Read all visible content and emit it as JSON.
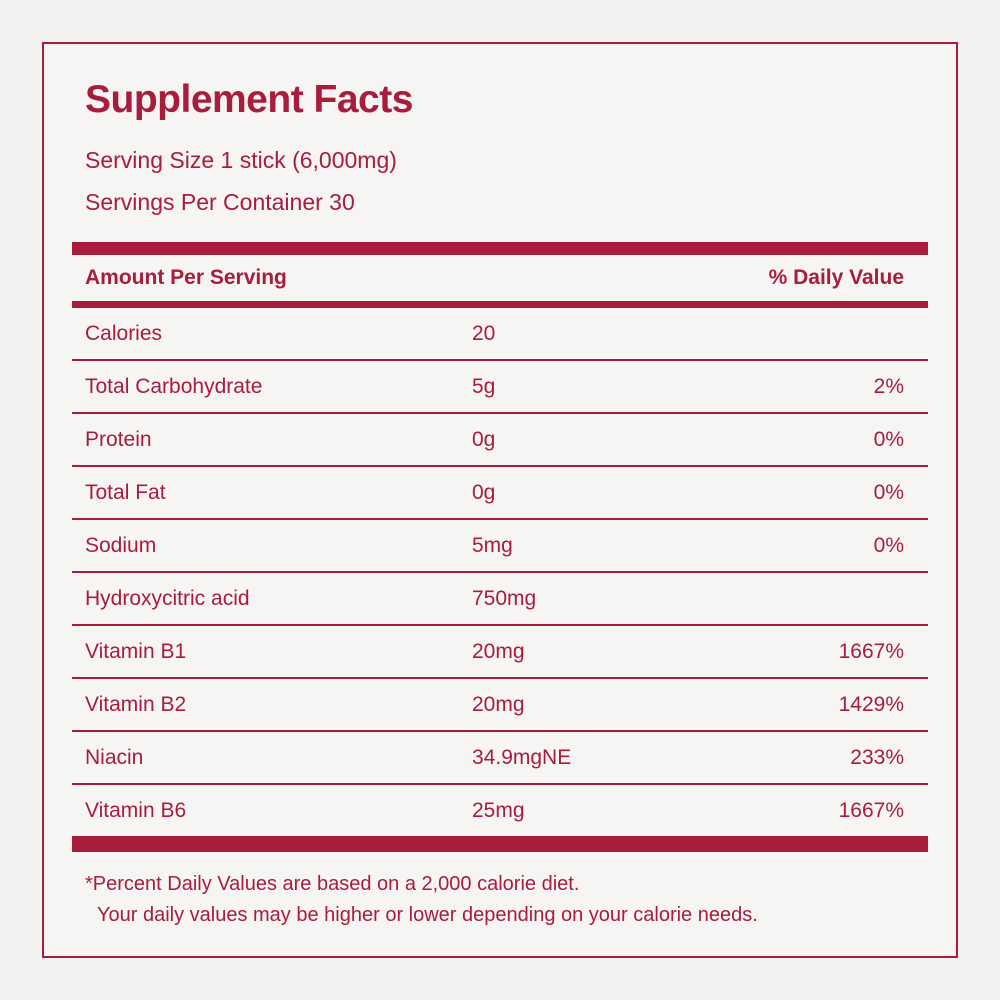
{
  "theme": {
    "accent": "#A71D3B",
    "background": "#F3F2F0",
    "card_background": "#F6F5F3"
  },
  "header": {
    "title": "Supplement Facts",
    "serving_size": "Serving Size 1 stick (6,000mg)",
    "servings_per_container": "Servings Per Container 30"
  },
  "table": {
    "columns": {
      "amount_header": "Amount Per Serving",
      "daily_value_header": "% Daily Value"
    },
    "rows": [
      {
        "name": "Calories",
        "amount": "20",
        "daily_value": ""
      },
      {
        "name": "Total Carbohydrate",
        "amount": "5g",
        "daily_value": "2%"
      },
      {
        "name": "Protein",
        "amount": "0g",
        "daily_value": "0%"
      },
      {
        "name": "Total Fat",
        "amount": "0g",
        "daily_value": "0%"
      },
      {
        "name": "Sodium",
        "amount": "5mg",
        "daily_value": "0%"
      },
      {
        "name": "Hydroxycitric acid",
        "amount": "750mg",
        "daily_value": ""
      },
      {
        "name": "Vitamin B1",
        "amount": "20mg",
        "daily_value": "1667%"
      },
      {
        "name": "Vitamin B2",
        "amount": "20mg",
        "daily_value": "1429%"
      },
      {
        "name": "Niacin",
        "amount": "34.9mgNE",
        "daily_value": "233%"
      },
      {
        "name": "Vitamin B6",
        "amount": "25mg",
        "daily_value": "1667%"
      }
    ]
  },
  "footnote": {
    "line1": "*Percent Daily Values are based on a 2,000 calorie diet.",
    "line2": "Your daily values may be higher or lower depending on your calorie needs."
  }
}
